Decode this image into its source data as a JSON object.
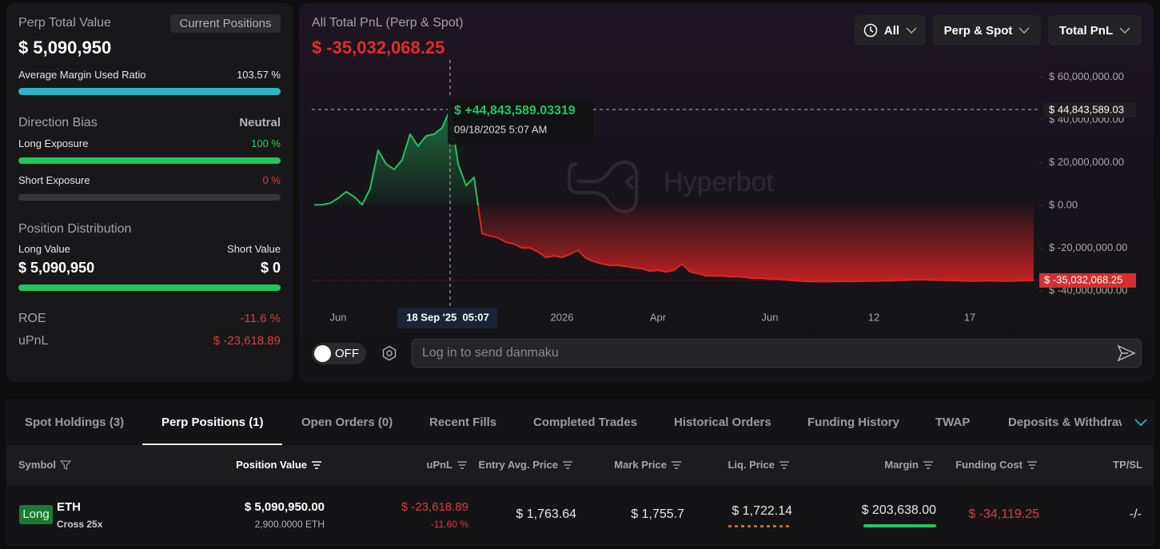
{
  "summary": {
    "title": "Perp Total Value",
    "tab": "Current Positions",
    "value": "$ 5,090,950",
    "margin_ratio_label": "Average Margin Used Ratio",
    "margin_ratio": "103.57 %",
    "direction_bias_label": "Direction Bias",
    "direction_bias": "Neutral",
    "long_exposure_label": "Long Exposure",
    "long_exposure": "100 %",
    "short_exposure_label": "Short Exposure",
    "short_exposure": "0 %",
    "distribution_label": "Position Distribution",
    "long_value_label": "Long Value",
    "short_value_label": "Short Value",
    "long_value": "$ 5,090,950",
    "short_value": "$ 0",
    "roe_label": "ROE",
    "roe": "-11.6 %",
    "upnl_label": "uPnL",
    "upnl": "$ -23,618.89"
  },
  "controls": {
    "range": "All",
    "scope": "Perp & Spot",
    "metric": "Total PnL",
    "danmaku_toggle": "OFF",
    "danmaku_placeholder": "Log in to send danmaku"
  },
  "chart_data": {
    "type": "line",
    "title": "All Total PnL (Perp & Spot)",
    "headline": "$ -35,032,068.25",
    "watermark": "Hyperbot",
    "x": [
      null,
      null,
      null,
      "Jun",
      null,
      null,
      null,
      null,
      null,
      null,
      null,
      null,
      null,
      null,
      null,
      null,
      null,
      null,
      null,
      null,
      null,
      null,
      null,
      null,
      null,
      null,
      null,
      null,
      null,
      null,
      null,
      "2026",
      null,
      null,
      null,
      null,
      null,
      null,
      null,
      null,
      null,
      null,
      null,
      "Apr",
      null,
      null,
      null,
      null,
      null,
      null,
      null,
      null,
      null,
      null,
      null,
      null,
      null,
      "Jun",
      null,
      null,
      null,
      null,
      null,
      null,
      null,
      null,
      null,
      null,
      null,
      null,
      "12",
      null,
      null,
      null,
      null,
      null,
      null,
      null,
      null,
      null,
      null,
      null,
      "17",
      null,
      null,
      null,
      null,
      null,
      null,
      null,
      null
    ],
    "values": [
      200000,
      400000,
      1100000,
      3400000,
      6400000,
      4100000,
      400000,
      7900000,
      25800000,
      19400000,
      16800000,
      21300000,
      33300000,
      27700000,
      32500000,
      33300000,
      36300000,
      44843589.03319,
      19400000,
      9300000,
      13100000,
      -13100000,
      -14200000,
      -15000000,
      -17200000,
      -17900000,
      -19800000,
      -19800000,
      -21700000,
      -24300000,
      -23500000,
      -24300000,
      -22800000,
      -20900000,
      -24700000,
      -26200000,
      -27300000,
      -28000000,
      -28000000,
      -28400000,
      -29200000,
      -29500000,
      -30700000,
      -30300000,
      -31000000,
      -30300000,
      -27300000,
      -31000000,
      -31800000,
      -32900000,
      -32900000,
      -32900000,
      -33300000,
      -33300000,
      -33600000,
      -34000000,
      -34000000,
      -34400000,
      -34400000,
      -34800000,
      -35100000,
      -35300000,
      -35500000,
      -35500000,
      -35500000,
      -35500000,
      -35400000,
      -35500000,
      -35400000,
      -35300000,
      -35300000,
      -35200000,
      -35200000,
      -35000000,
      -34900000,
      -34700000,
      -34600000,
      -34800000,
      -34900000,
      -35000000,
      -35100000,
      -35200000,
      -35300000,
      -35300000,
      -35200000,
      -35200000,
      -35300000,
      -35300000,
      -35200000,
      -35100000,
      -35032068.25
    ],
    "color": "#22c55e",
    "negative_color": "#e02424",
    "ylim": [
      -47000000,
      68000000
    ],
    "yticks": [
      {
        "value": -40000000,
        "label": "$ -40,000,000.00"
      },
      {
        "value": -20000000,
        "label": "$ -20,000,000.00"
      },
      {
        "value": 0,
        "label": "$ 0.00"
      },
      {
        "value": 20000000,
        "label": "$ 20,000,000.00"
      },
      {
        "value": 40000000,
        "label": "$ 40,000,000.00"
      },
      {
        "value": 60000000,
        "label": "$ 60,000,000.00"
      }
    ],
    "grid": false,
    "hover_index": 17,
    "hover_x_label": "18 Sep '25  05:07",
    "crosshair_y_label": "$ 44,843,589.03",
    "tooltip_value": "$ +44,843,589.03319",
    "tooltip_date": "09/18/2025 5:07 AM",
    "last_label": "$ -35,032,068.25"
  },
  "tabs": [
    "Spot Holdings (3)",
    "Perp Positions (1)",
    "Open Orders (0)",
    "Recent Fills",
    "Completed Trades",
    "Historical Orders",
    "Funding History",
    "TWAP",
    "Deposits & Withdrawals"
  ],
  "table": {
    "headers": [
      "Symbol",
      "Position Value",
      "uPnL",
      "Entry Avg. Price",
      "Mark Price",
      "Liq. Price",
      "Margin",
      "Funding Cost",
      "TP/SL"
    ],
    "rows": [
      {
        "side": "Long",
        "symbol": "ETH",
        "margin_mode": "Cross 25x",
        "position_value": "$ 5,090,950.00",
        "size": "2,900.0000 ETH",
        "upnl": "$ -23,618.89",
        "upnl_pct": "-11.60 %",
        "entry_price": "$ 1,763.64",
        "mark_price": "$ 1,755.7",
        "liq_price": "$ 1,722.14",
        "margin": "$ 203,638.00",
        "funding_cost": "$ -34,119.25",
        "tp_sl": "-/-"
      }
    ]
  }
}
